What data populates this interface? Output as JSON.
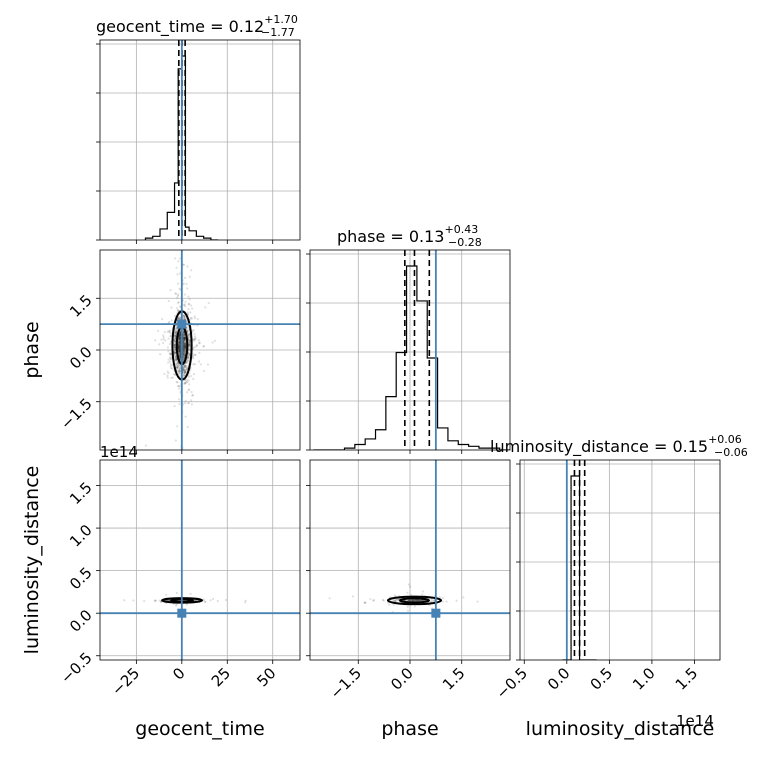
{
  "chart_data": {
    "type": "corner",
    "parameters": [
      "geocent_time",
      "phase",
      "luminosity_distance"
    ],
    "titles": [
      {
        "param": "geocent_time",
        "text": "geocent_time = 0.12",
        "plus": "+1.70",
        "minus": "−1.77"
      },
      {
        "param": "phase",
        "text": "phase = 0.13",
        "plus": "+0.43",
        "minus": "−0.28"
      },
      {
        "param": "luminosity_distance",
        "text": "luminosity_distance = 0.15",
        "plus": "+0.06",
        "minus": "−0.06"
      }
    ],
    "axis_labels": [
      "geocent_time",
      "phase",
      "luminosity_distance"
    ],
    "ranges": {
      "geocent_time": [
        -45,
        65
      ],
      "phase": [
        -2.9,
        2.9
      ],
      "luminosity_distance": [
        -0.55,
        1.8
      ]
    },
    "ticks": {
      "geocent_time": {
        "values": [
          -25,
          0,
          25,
          50
        ],
        "labels": [
          "−25",
          "0",
          "25",
          "50"
        ]
      },
      "phase": {
        "values": [
          -1.5,
          0.0,
          1.5
        ],
        "labels": [
          "−1.5",
          "0.0",
          "1.5"
        ]
      },
      "luminosity_distance": {
        "values": [
          -0.5,
          0.0,
          0.5,
          1.0,
          1.5
        ],
        "labels": [
          "−0.5",
          "0.0",
          "0.5",
          "1.0",
          "1.5"
        ]
      }
    },
    "offset_text": "1e14",
    "truth": {
      "geocent_time": 0.0,
      "phase": 0.75,
      "luminosity_distance": 0.0
    },
    "quantiles": {
      "geocent_time": [
        -1.65,
        0.12,
        1.82
      ],
      "phase": [
        -0.15,
        0.13,
        0.56
      ],
      "luminosity_distance": [
        0.09,
        0.15,
        0.21
      ]
    },
    "histograms": {
      "geocent_time": {
        "bin_edges": [
          -20,
          -16,
          -12,
          -8,
          -4,
          -2,
          0,
          2,
          4,
          8,
          12,
          16,
          20
        ],
        "counts": [
          0.01,
          0.02,
          0.06,
          0.15,
          0.31,
          0.93,
          1.0,
          0.07,
          0.05,
          0.02,
          0.01,
          0.0
        ]
      },
      "phase": {
        "bin_edges": [
          -2.8,
          -2.5,
          -2.2,
          -1.9,
          -1.6,
          -1.3,
          -1.0,
          -0.7,
          -0.4,
          -0.1,
          0.2,
          0.5,
          0.8,
          1.1,
          1.4,
          1.7,
          2.0,
          2.3,
          2.6,
          2.9
        ],
        "counts": [
          0.0,
          0.0,
          0.0,
          0.01,
          0.03,
          0.06,
          0.11,
          0.29,
          0.53,
          1.0,
          0.81,
          0.5,
          0.12,
          0.05,
          0.03,
          0.02,
          0.01,
          0.01,
          0.0
        ]
      },
      "luminosity_distance": {
        "bin_edges": [
          -0.05,
          0.05,
          0.15,
          0.25,
          0.35
        ],
        "counts": [
          0.0,
          1.0,
          0.0,
          0.0
        ]
      }
    },
    "grid": true
  }
}
